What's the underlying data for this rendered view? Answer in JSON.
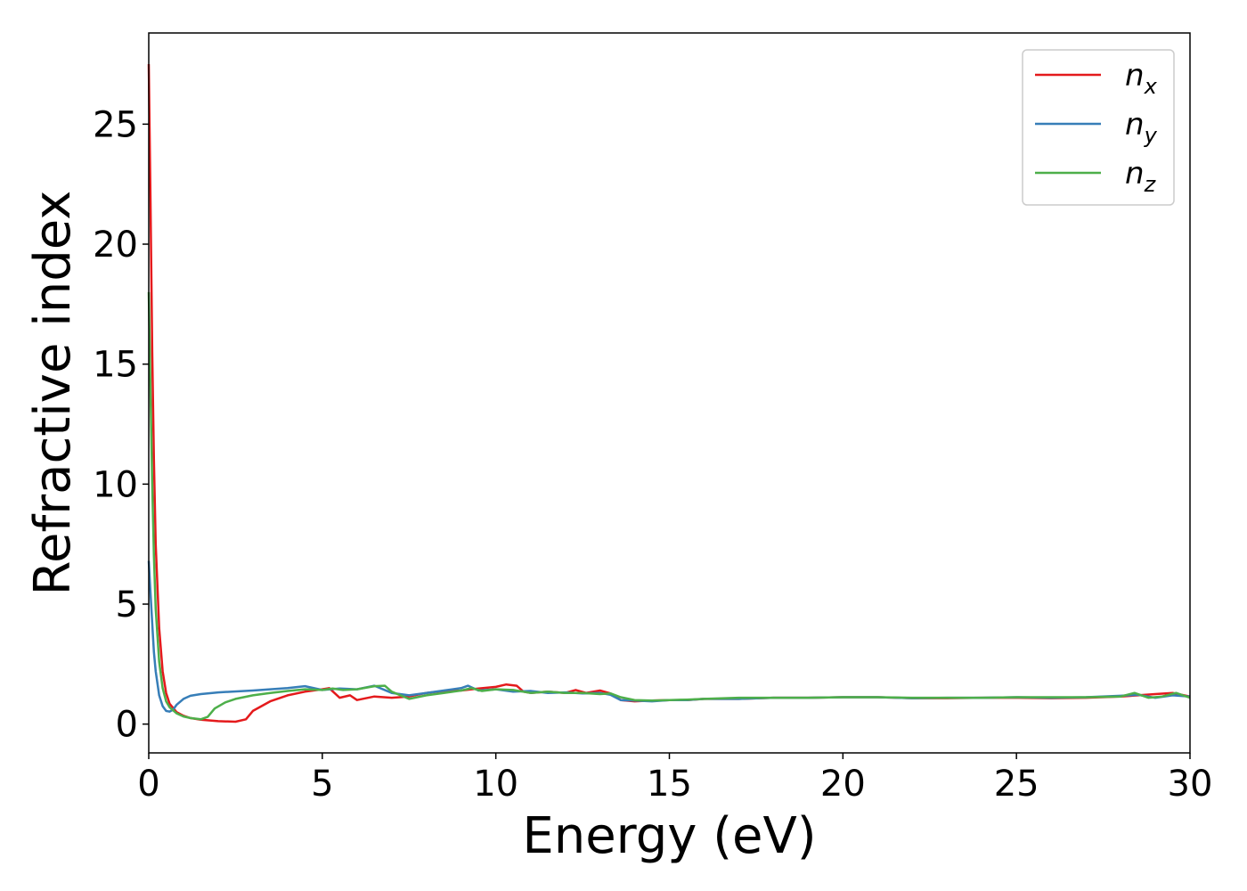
{
  "chart_data": {
    "type": "line",
    "title": "",
    "xlabel": "Energy (eV)",
    "ylabel": "Refractive index",
    "xlim": [
      0,
      30
    ],
    "ylim": [
      -1.2,
      28.8
    ],
    "xticks": [
      0,
      5,
      10,
      15,
      20,
      25,
      30
    ],
    "yticks": [
      0,
      5,
      10,
      15,
      20,
      25
    ],
    "grid": false,
    "legend_position": "top-right",
    "series": [
      {
        "name": "n",
        "subscript": "x",
        "color": "#e41a1c",
        "x": [
          0,
          0.05,
          0.1,
          0.15,
          0.2,
          0.3,
          0.4,
          0.5,
          0.6,
          0.8,
          1.0,
          1.2,
          1.5,
          2.0,
          2.5,
          2.8,
          3.0,
          3.5,
          4.0,
          4.5,
          5.0,
          5.2,
          5.5,
          5.8,
          6.0,
          6.5,
          7.0,
          7.5,
          8.0,
          8.5,
          9.0,
          9.5,
          10.0,
          10.3,
          10.6,
          10.8,
          11.0,
          11.5,
          12.0,
          12.3,
          12.6,
          13.0,
          13.3,
          13.6,
          14.0,
          14.5,
          15.0,
          15.5,
          16.0,
          17.0,
          18.0,
          19.0,
          20.0,
          21.0,
          22.0,
          23.0,
          24.0,
          25.0,
          26.0,
          27.0,
          28.0,
          28.5,
          29.0,
          29.5,
          30.0
        ],
        "y": [
          27.5,
          22.0,
          15.5,
          11.0,
          7.5,
          4.0,
          2.2,
          1.3,
          0.85,
          0.5,
          0.35,
          0.25,
          0.18,
          0.12,
          0.1,
          0.2,
          0.55,
          0.95,
          1.2,
          1.35,
          1.45,
          1.5,
          1.1,
          1.2,
          1.0,
          1.15,
          1.1,
          1.15,
          1.3,
          1.38,
          1.4,
          1.48,
          1.55,
          1.65,
          1.6,
          1.35,
          1.3,
          1.35,
          1.3,
          1.42,
          1.3,
          1.4,
          1.28,
          1.0,
          0.95,
          0.98,
          1.0,
          1.0,
          1.05,
          1.05,
          1.1,
          1.1,
          1.12,
          1.12,
          1.08,
          1.08,
          1.1,
          1.1,
          1.08,
          1.1,
          1.15,
          1.2,
          1.25,
          1.3,
          1.15
        ]
      },
      {
        "name": "n",
        "subscript": "y",
        "color": "#377eb8",
        "x": [
          0,
          0.05,
          0.1,
          0.15,
          0.2,
          0.3,
          0.4,
          0.5,
          0.6,
          0.7,
          0.8,
          1.0,
          1.2,
          1.5,
          2.0,
          3.0,
          4.0,
          4.5,
          5.0,
          5.5,
          6.0,
          6.5,
          7.0,
          7.5,
          8.0,
          8.5,
          9.0,
          9.2,
          9.5,
          10.0,
          10.5,
          11.0,
          11.5,
          12.0,
          12.5,
          13.0,
          13.3,
          13.6,
          14.0,
          14.5,
          15.0,
          15.5,
          16.0,
          17.0,
          18.0,
          19.0,
          20.0,
          21.0,
          22.0,
          23.0,
          24.0,
          25.0,
          26.0,
          27.0,
          28.0,
          28.5,
          29.0,
          29.5,
          30.0
        ],
        "y": [
          6.8,
          5.5,
          4.2,
          3.0,
          2.2,
          1.2,
          0.75,
          0.55,
          0.52,
          0.6,
          0.8,
          1.05,
          1.18,
          1.25,
          1.32,
          1.4,
          1.5,
          1.58,
          1.42,
          1.48,
          1.45,
          1.6,
          1.3,
          1.2,
          1.3,
          1.4,
          1.5,
          1.6,
          1.4,
          1.45,
          1.35,
          1.38,
          1.3,
          1.32,
          1.28,
          1.3,
          1.22,
          1.0,
          0.98,
          0.95,
          1.0,
          1.0,
          1.05,
          1.05,
          1.1,
          1.1,
          1.12,
          1.12,
          1.08,
          1.1,
          1.1,
          1.12,
          1.1,
          1.12,
          1.18,
          1.22,
          1.1,
          1.2,
          1.15
        ]
      },
      {
        "name": "n",
        "subscript": "z",
        "color": "#4daf4a",
        "x": [
          0,
          0.05,
          0.1,
          0.15,
          0.2,
          0.3,
          0.4,
          0.5,
          0.6,
          0.8,
          1.0,
          1.2,
          1.5,
          1.7,
          1.9,
          2.2,
          2.5,
          3.0,
          3.5,
          4.0,
          4.5,
          5.0,
          5.3,
          5.6,
          6.0,
          6.5,
          6.8,
          7.0,
          7.5,
          8.0,
          8.5,
          9.0,
          9.3,
          9.6,
          10.0,
          10.5,
          11.0,
          11.5,
          12.0,
          12.5,
          13.0,
          13.3,
          13.6,
          14.0,
          14.5,
          15.0,
          15.5,
          16.0,
          17.0,
          18.0,
          19.0,
          20.0,
          21.0,
          22.0,
          23.0,
          24.0,
          25.0,
          26.0,
          27.0,
          28.0,
          28.4,
          28.8,
          29.2,
          29.6,
          30.0
        ],
        "y": [
          18.0,
          14.0,
          10.0,
          7.0,
          4.8,
          2.6,
          1.5,
          0.95,
          0.7,
          0.45,
          0.32,
          0.25,
          0.2,
          0.3,
          0.65,
          0.9,
          1.05,
          1.2,
          1.3,
          1.38,
          1.45,
          1.42,
          1.48,
          1.42,
          1.45,
          1.58,
          1.6,
          1.35,
          1.05,
          1.2,
          1.3,
          1.4,
          1.5,
          1.38,
          1.45,
          1.42,
          1.3,
          1.35,
          1.3,
          1.3,
          1.25,
          1.28,
          1.12,
          1.0,
          0.98,
          1.0,
          1.02,
          1.05,
          1.1,
          1.1,
          1.1,
          1.12,
          1.12,
          1.1,
          1.1,
          1.1,
          1.12,
          1.12,
          1.12,
          1.15,
          1.3,
          1.1,
          1.15,
          1.3,
          1.1
        ]
      }
    ]
  }
}
